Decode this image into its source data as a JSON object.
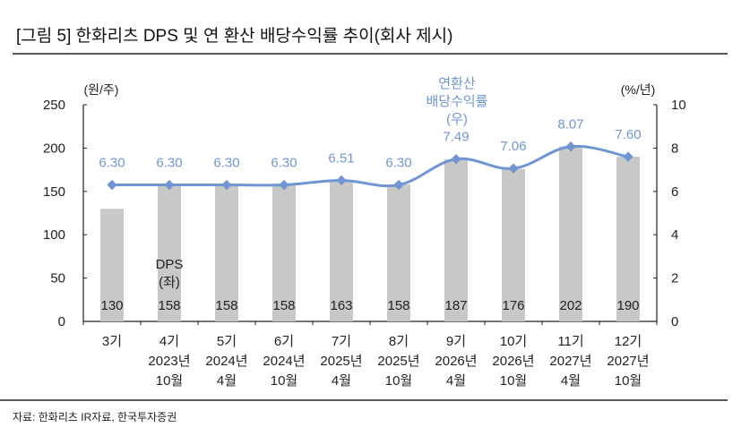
{
  "title": "[그림 5] 한화리츠 DPS 및 연 환산 배당수익률 추이(회사 제시)",
  "source": "자료: 한화리츠 IR자료, 한국투자증권",
  "chart_data": {
    "type": "bar+line",
    "categories": [
      [
        "3기"
      ],
      [
        "4기",
        "2023년",
        "10월"
      ],
      [
        "5기",
        "2024년",
        "4월"
      ],
      [
        "6기",
        "2024년",
        "10월"
      ],
      [
        "7기",
        "2025년",
        "4월"
      ],
      [
        "8기",
        "2025년",
        "10월"
      ],
      [
        "9기",
        "2026년",
        "4월"
      ],
      [
        "10기",
        "2026년",
        "10월"
      ],
      [
        "11기",
        "2027년",
        "4월"
      ],
      [
        "12기",
        "2027년",
        "10월"
      ]
    ],
    "series": [
      {
        "name": "DPS\n(좌)",
        "name_lines": [
          "DPS",
          "(좌)"
        ],
        "type": "bar",
        "axis": "left",
        "color": "#c8c8c8",
        "values": [
          130,
          158,
          158,
          158,
          163,
          158,
          187,
          176,
          202,
          190
        ],
        "labels": [
          "130",
          "158",
          "158",
          "158",
          "163",
          "158",
          "187",
          "176",
          "202",
          "190"
        ]
      },
      {
        "name": "연환산 배당수익률 (우)",
        "name_lines": [
          "연환산",
          "배당수익률",
          "(우)"
        ],
        "type": "line",
        "axis": "right",
        "color": "#6f96d3",
        "values": [
          6.3,
          6.3,
          6.3,
          6.3,
          6.51,
          6.3,
          7.49,
          7.06,
          8.07,
          7.6
        ],
        "labels": [
          "6.30",
          "6.30",
          "6.30",
          "6.30",
          "6.51",
          "6.30",
          "7.49",
          "7.06",
          "8.07",
          "7.60"
        ]
      }
    ],
    "y_left": {
      "label": "(원/주)",
      "range": [
        0,
        250
      ],
      "ticks": [
        "0",
        "50",
        "100",
        "150",
        "200",
        "250"
      ]
    },
    "y_right": {
      "label": "(%/년)",
      "range": [
        0,
        10
      ],
      "ticks": [
        "0",
        "2",
        "4",
        "6",
        "8",
        "10"
      ]
    },
    "grid": false
  }
}
